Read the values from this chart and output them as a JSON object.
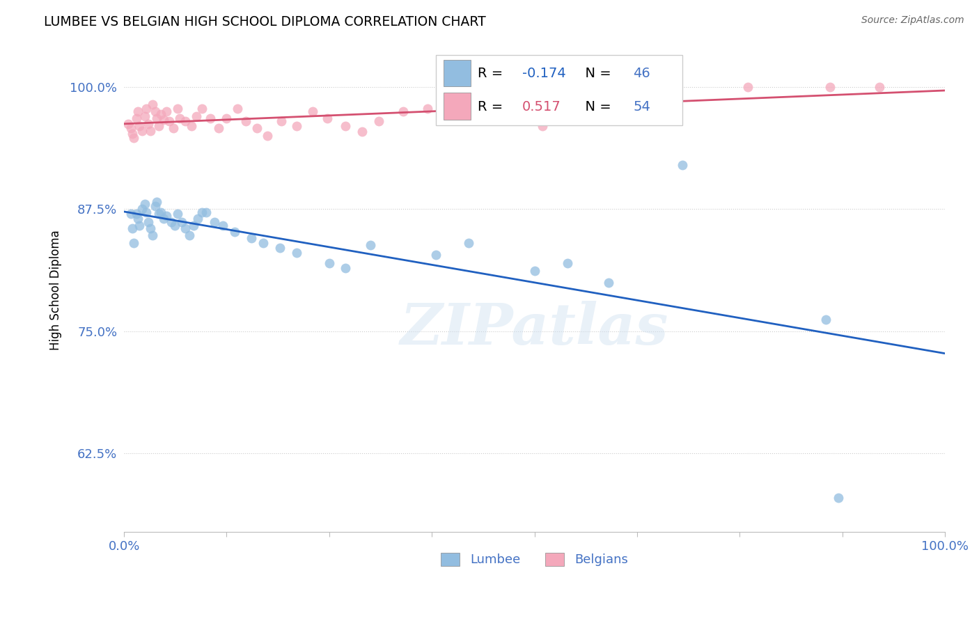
{
  "title": "LUMBEE VS BELGIAN HIGH SCHOOL DIPLOMA CORRELATION CHART",
  "source": "Source: ZipAtlas.com",
  "ylabel": "High School Diploma",
  "xlim": [
    0.0,
    1.0
  ],
  "ylim": [
    0.545,
    1.04
  ],
  "yticks": [
    0.625,
    0.75,
    0.875,
    1.0
  ],
  "ytick_labels": [
    "62.5%",
    "75.0%",
    "87.5%",
    "100.0%"
  ],
  "xticks": [
    0.0,
    0.125,
    0.25,
    0.375,
    0.5,
    0.625,
    0.75,
    0.875,
    1.0
  ],
  "lumbee_R": -0.174,
  "lumbee_N": 46,
  "belgian_R": 0.517,
  "belgian_N": 54,
  "lumbee_color": "#92bde0",
  "belgian_color": "#f4a8bb",
  "lumbee_line_color": "#2060c0",
  "belgian_line_color": "#d45070",
  "axis_label_color": "#4472c4",
  "lumbee_x": [
    0.008,
    0.01,
    0.012,
    0.015,
    0.017,
    0.019,
    0.022,
    0.025,
    0.027,
    0.03,
    0.032,
    0.035,
    0.038,
    0.04,
    0.042,
    0.045,
    0.048,
    0.052,
    0.058,
    0.062,
    0.065,
    0.07,
    0.075,
    0.08,
    0.085,
    0.09,
    0.095,
    0.1,
    0.11,
    0.12,
    0.135,
    0.155,
    0.17,
    0.19,
    0.21,
    0.25,
    0.27,
    0.3,
    0.38,
    0.42,
    0.5,
    0.54,
    0.59,
    0.68,
    0.855,
    0.87
  ],
  "lumbee_y": [
    0.87,
    0.855,
    0.84,
    0.87,
    0.865,
    0.858,
    0.875,
    0.88,
    0.872,
    0.862,
    0.855,
    0.848,
    0.878,
    0.882,
    0.87,
    0.872,
    0.865,
    0.868,
    0.862,
    0.858,
    0.87,
    0.862,
    0.855,
    0.848,
    0.858,
    0.865,
    0.872,
    0.872,
    0.862,
    0.858,
    0.852,
    0.845,
    0.84,
    0.835,
    0.83,
    0.82,
    0.815,
    0.838,
    0.828,
    0.84,
    0.812,
    0.82,
    0.8,
    0.92,
    0.762,
    0.58
  ],
  "belgian_x": [
    0.005,
    0.008,
    0.01,
    0.012,
    0.015,
    0.017,
    0.019,
    0.022,
    0.025,
    0.027,
    0.03,
    0.032,
    0.035,
    0.038,
    0.04,
    0.042,
    0.045,
    0.048,
    0.052,
    0.055,
    0.06,
    0.065,
    0.068,
    0.075,
    0.082,
    0.088,
    0.095,
    0.105,
    0.115,
    0.125,
    0.138,
    0.148,
    0.162,
    0.175,
    0.192,
    0.21,
    0.23,
    0.248,
    0.27,
    0.29,
    0.31,
    0.34,
    0.37,
    0.4,
    0.44,
    0.475,
    0.51,
    0.55,
    0.59,
    0.63,
    0.67,
    0.76,
    0.86,
    0.92
  ],
  "belgian_y": [
    0.962,
    0.958,
    0.952,
    0.948,
    0.968,
    0.975,
    0.96,
    0.955,
    0.97,
    0.978,
    0.962,
    0.955,
    0.982,
    0.975,
    0.968,
    0.96,
    0.972,
    0.966,
    0.975,
    0.965,
    0.958,
    0.978,
    0.968,
    0.965,
    0.96,
    0.97,
    0.978,
    0.968,
    0.958,
    0.968,
    0.978,
    0.965,
    0.958,
    0.95,
    0.965,
    0.96,
    0.975,
    0.968,
    0.96,
    0.954,
    0.965,
    0.975,
    0.978,
    0.968,
    0.972,
    0.978,
    0.96,
    0.975,
    0.98,
    0.988,
    0.994,
    1.0,
    1.0,
    1.0
  ],
  "watermark": "ZIPatlas",
  "background_color": "#ffffff",
  "grid_color": "#cccccc"
}
